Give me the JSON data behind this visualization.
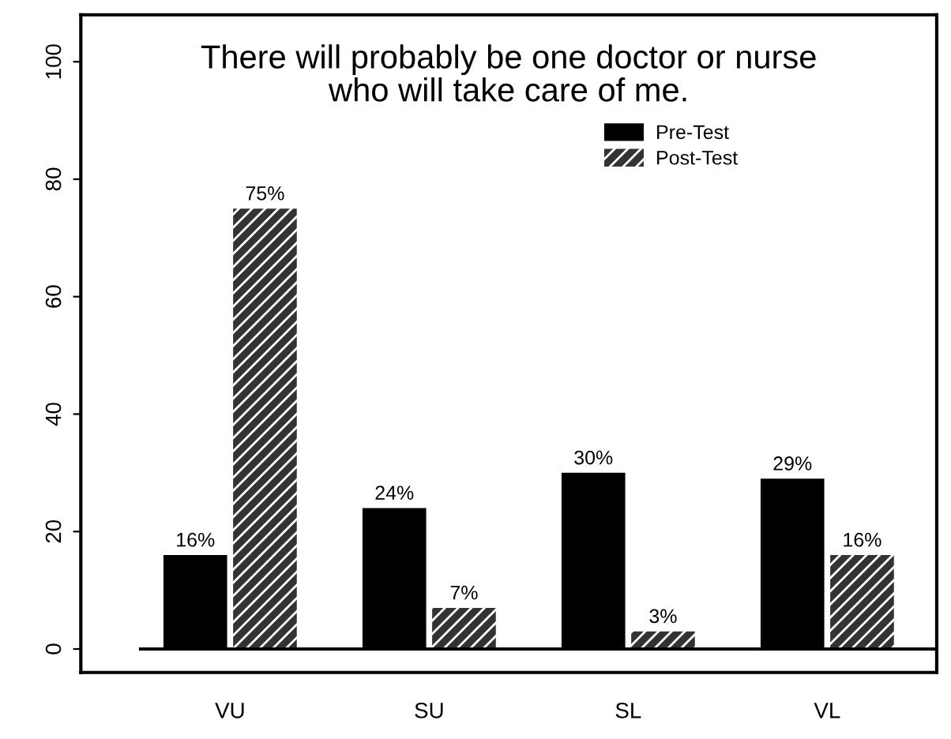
{
  "chart_data": {
    "type": "bar",
    "title": "There will probably be one doctor or nurse\nwho will take care of me.",
    "categories": [
      "VU",
      "SU",
      "SL",
      "VL"
    ],
    "series": [
      {
        "name": "Pre-Test",
        "color": "#000000",
        "values": [
          16,
          24,
          30,
          29
        ],
        "value_labels": [
          "16%",
          "24%",
          "30%",
          "29%"
        ]
      },
      {
        "name": "Post-Test",
        "color": "#333333",
        "values": [
          75,
          7,
          3,
          16
        ],
        "value_labels": [
          "75%",
          "7%",
          "3%",
          "16%"
        ]
      }
    ],
    "ylim": [
      -4,
      108
    ],
    "yticks": [
      0,
      20,
      40,
      60,
      80,
      100
    ],
    "ref_lines": [
      {
        "axis": "y",
        "value": 0
      }
    ],
    "legend": "top right",
    "grid": false
  }
}
